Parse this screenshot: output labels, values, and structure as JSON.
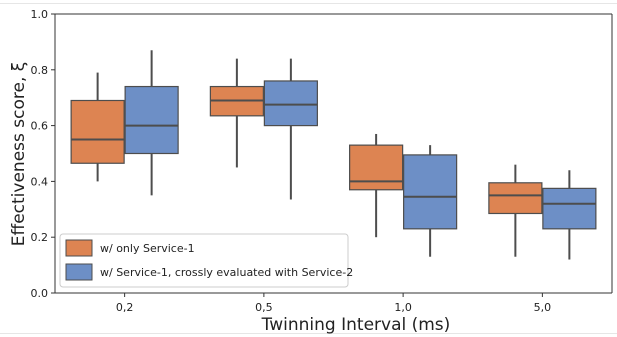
{
  "chart_data": {
    "type": "box",
    "xlabel": "Twinning Interval (ms)",
    "ylabel": "Effectiveness score, ξ",
    "categories": [
      "0,2",
      "0,5",
      "1,0",
      "5,0"
    ],
    "ylim": [
      0.0,
      1.0
    ],
    "yticks": [
      "0.0",
      "0.2",
      "0.4",
      "0.6",
      "0.8",
      "1.0"
    ],
    "legend_position": "lower-left",
    "grid": false,
    "series": [
      {
        "name": "w/ only Service-1",
        "color": "#dd8452",
        "boxes": [
          {
            "whislo": 0.4,
            "q1": 0.465,
            "med": 0.55,
            "q3": 0.69,
            "whishi": 0.79
          },
          {
            "whislo": 0.45,
            "q1": 0.635,
            "med": 0.69,
            "q3": 0.74,
            "whishi": 0.84
          },
          {
            "whislo": 0.2,
            "q1": 0.37,
            "med": 0.4,
            "q3": 0.53,
            "whishi": 0.57
          },
          {
            "whislo": 0.13,
            "q1": 0.285,
            "med": 0.35,
            "q3": 0.395,
            "whishi": 0.46
          }
        ]
      },
      {
        "name": "w/ Service-1, crossly evaluated with Service-2",
        "color": "#6d8fc6",
        "boxes": [
          {
            "whislo": 0.35,
            "q1": 0.5,
            "med": 0.6,
            "q3": 0.74,
            "whishi": 0.87
          },
          {
            "whislo": 0.335,
            "q1": 0.6,
            "med": 0.675,
            "q3": 0.76,
            "whishi": 0.84
          },
          {
            "whislo": 0.13,
            "q1": 0.23,
            "med": 0.345,
            "q3": 0.495,
            "whishi": 0.53
          },
          {
            "whislo": 0.12,
            "q1": 0.23,
            "med": 0.32,
            "q3": 0.375,
            "whishi": 0.44
          }
        ]
      }
    ]
  }
}
